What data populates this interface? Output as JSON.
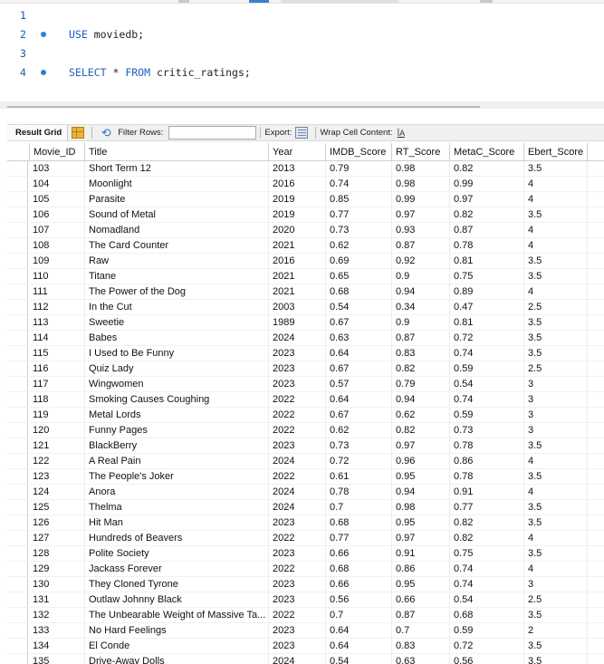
{
  "editor": {
    "lines": [
      {
        "num": "1",
        "marker": false,
        "parts": []
      },
      {
        "num": "2",
        "marker": true,
        "parts": [
          {
            "t": "USE",
            "kw": true
          },
          {
            "t": " moviedb;",
            "kw": false
          }
        ]
      },
      {
        "num": "3",
        "marker": false,
        "parts": []
      },
      {
        "num": "4",
        "marker": true,
        "parts": [
          {
            "t": "SELECT",
            "kw": true
          },
          {
            "t": " * ",
            "kw": false
          },
          {
            "t": "FROM",
            "kw": true
          },
          {
            "t": " critic_ratings;",
            "kw": false
          }
        ]
      }
    ]
  },
  "toolbar": {
    "result_grid_label": "Result Grid",
    "filter_label": "Filter Rows:",
    "filter_value": "",
    "export_label": "Export:",
    "wrap_label": "Wrap Cell Content:",
    "wrap_icon_text": "ĪA"
  },
  "columns": [
    "Movie_ID",
    "Title",
    "Year",
    "IMDB_Score",
    "RT_Score",
    "MetaC_Score",
    "Ebert_Score"
  ],
  "rows": [
    [
      "103",
      "Short Term 12",
      "2013",
      "0.79",
      "0.98",
      "0.82",
      "3.5"
    ],
    [
      "104",
      "Moonlight",
      "2016",
      "0.74",
      "0.98",
      "0.99",
      "4"
    ],
    [
      "105",
      "Parasite",
      "2019",
      "0.85",
      "0.99",
      "0.97",
      "4"
    ],
    [
      "106",
      "Sound of Metal",
      "2019",
      "0.77",
      "0.97",
      "0.82",
      "3.5"
    ],
    [
      "107",
      "Nomadland",
      "2020",
      "0.73",
      "0.93",
      "0.87",
      "4"
    ],
    [
      "108",
      "The Card Counter",
      "2021",
      "0.62",
      "0.87",
      "0.78",
      "4"
    ],
    [
      "109",
      "Raw",
      "2016",
      "0.69",
      "0.92",
      "0.81",
      "3.5"
    ],
    [
      "110",
      "Titane",
      "2021",
      "0.65",
      "0.9",
      "0.75",
      "3.5"
    ],
    [
      "111",
      "The Power of the Dog",
      "2021",
      "0.68",
      "0.94",
      "0.89",
      "4"
    ],
    [
      "112",
      "In the Cut",
      "2003",
      "0.54",
      "0.34",
      "0.47",
      "2.5"
    ],
    [
      "113",
      "Sweetie",
      "1989",
      "0.67",
      "0.9",
      "0.81",
      "3.5"
    ],
    [
      "114",
      "Babes",
      "2024",
      "0.63",
      "0.87",
      "0.72",
      "3.5"
    ],
    [
      "115",
      "I Used to Be Funny",
      "2023",
      "0.64",
      "0.83",
      "0.74",
      "3.5"
    ],
    [
      "116",
      "Quiz Lady",
      "2023",
      "0.67",
      "0.82",
      "0.59",
      "2.5"
    ],
    [
      "117",
      "Wingwomen",
      "2023",
      "0.57",
      "0.79",
      "0.54",
      "3"
    ],
    [
      "118",
      "Smoking Causes Coughing",
      "2022",
      "0.64",
      "0.94",
      "0.74",
      "3"
    ],
    [
      "119",
      "Metal Lords",
      "2022",
      "0.67",
      "0.62",
      "0.59",
      "3"
    ],
    [
      "120",
      "Funny Pages",
      "2022",
      "0.62",
      "0.82",
      "0.73",
      "3"
    ],
    [
      "121",
      "BlackBerry",
      "2023",
      "0.73",
      "0.97",
      "0.78",
      "3.5"
    ],
    [
      "122",
      "A Real Pain",
      "2024",
      "0.72",
      "0.96",
      "0.86",
      "4"
    ],
    [
      "123",
      "The People's Joker",
      "2022",
      "0.61",
      "0.95",
      "0.78",
      "3.5"
    ],
    [
      "124",
      "Anora",
      "2024",
      "0.78",
      "0.94",
      "0.91",
      "4"
    ],
    [
      "125",
      "Thelma",
      "2024",
      "0.7",
      "0.98",
      "0.77",
      "3.5"
    ],
    [
      "126",
      "Hit Man",
      "2023",
      "0.68",
      "0.95",
      "0.82",
      "3.5"
    ],
    [
      "127",
      "Hundreds of Beavers",
      "2022",
      "0.77",
      "0.97",
      "0.82",
      "4"
    ],
    [
      "128",
      "Polite Society",
      "2023",
      "0.66",
      "0.91",
      "0.75",
      "3.5"
    ],
    [
      "129",
      "Jackass Forever",
      "2022",
      "0.68",
      "0.86",
      "0.74",
      "4"
    ],
    [
      "130",
      "They Cloned Tyrone",
      "2023",
      "0.66",
      "0.95",
      "0.74",
      "3"
    ],
    [
      "131",
      "Outlaw Johnny Black",
      "2023",
      "0.56",
      "0.66",
      "0.54",
      "2.5"
    ],
    [
      "132",
      "The Unbearable Weight of Massive Ta...",
      "2022",
      "0.7",
      "0.87",
      "0.68",
      "3.5"
    ],
    [
      "133",
      "No Hard Feelings",
      "2023",
      "0.64",
      "0.7",
      "0.59",
      "2"
    ],
    [
      "134",
      "El Conde",
      "2023",
      "0.64",
      "0.83",
      "0.72",
      "3.5"
    ],
    [
      "135",
      "Drive-Away Dolls",
      "2024",
      "0.54",
      "0.63",
      "0.56",
      "3.5"
    ]
  ]
}
